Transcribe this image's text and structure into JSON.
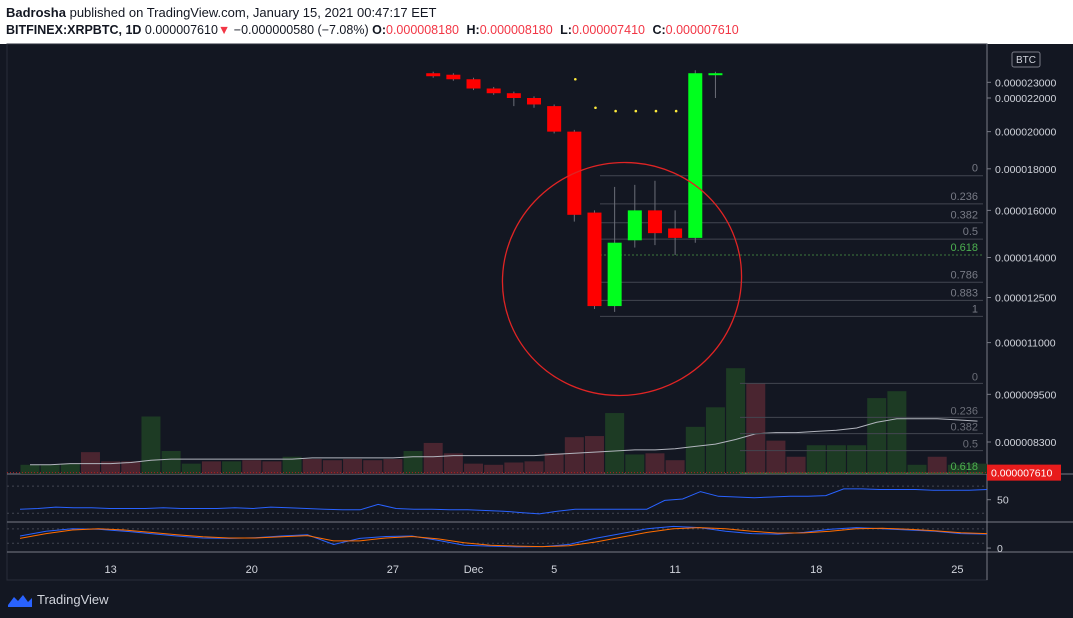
{
  "header": {
    "author": "Badrosha",
    "published_text": "published on TradingView.com, January 15, 2021 00:47:17 EET",
    "symbol": "BITFINEX:XRPBTC, 1D",
    "last": "0.000007610",
    "change": "−0.000000580 (−7.08%)",
    "o_label": "O:",
    "o_value": "0.000008180",
    "h_label": "H:",
    "h_value": "0.000008180",
    "l_label": "L:",
    "l_value": "0.000007410",
    "c_label": "C:",
    "c_value": "0.000007610"
  },
  "currency_badge": "BTC",
  "last_price_badge": "0.000007610",
  "branding": {
    "name": "TradingView",
    "icon": "tradingview-logo-icon"
  },
  "colors": {
    "background": "#131722",
    "up": "#00ff1e",
    "down": "#ff0000",
    "fib_green": "#4caf50",
    "rsi_line": "#2962ff",
    "stoch_k": "#2962ff",
    "stoch_d": "#ff6d00",
    "annotation": "#ff2020"
  },
  "chart_data": {
    "type": "candlestick",
    "price_axis": {
      "range": [
        7.5e-06,
        2.35e-05
      ],
      "ticks": [
        "0.000023000",
        "0.000022000",
        "0.000020000",
        "0.000018000",
        "0.000016000",
        "0.000014000",
        "0.000012500",
        "0.000011000",
        "0.000009500",
        "0.000008300"
      ]
    },
    "tick_values": [
      2.3e-05,
      2.2e-05,
      2e-05,
      1.8e-05,
      1.6e-05,
      1.4e-05,
      1.25e-05,
      1.1e-05,
      9.5e-06,
      8.3e-06
    ],
    "x_labels": [
      {
        "label": "13",
        "idx": 4
      },
      {
        "label": "20",
        "idx": 11
      },
      {
        "label": "27",
        "idx": 18
      },
      {
        "label": "Dec",
        "idx": 22
      },
      {
        "label": "5",
        "idx": 26
      },
      {
        "label": "11",
        "idx": 32
      },
      {
        "label": "18",
        "idx": 39
      },
      {
        "label": "25",
        "idx": 46
      }
    ],
    "candles": [
      {
        "idx": 20,
        "o": 2.36e-05,
        "h": 2.37e-05,
        "c": 2.34e-05,
        "l": 2.33e-05
      },
      {
        "idx": 21,
        "o": 2.35e-05,
        "h": 2.36e-05,
        "c": 2.32e-05,
        "l": 2.31e-05
      },
      {
        "idx": 22,
        "o": 2.32e-05,
        "h": 2.33e-05,
        "c": 2.26e-05,
        "l": 2.25e-05
      },
      {
        "idx": 23,
        "o": 2.26e-05,
        "h": 2.27e-05,
        "c": 2.23e-05,
        "l": 2.22e-05
      },
      {
        "idx": 24,
        "o": 2.23e-05,
        "h": 2.24e-05,
        "c": 2.2e-05,
        "l": 2.15e-05
      },
      {
        "idx": 25,
        "o": 2.2e-05,
        "h": 2.21e-05,
        "c": 2.16e-05,
        "l": 2.14e-05
      },
      {
        "idx": 26,
        "o": 2.15e-05,
        "h": 2.16e-05,
        "c": 2e-05,
        "l": 1.99e-05
      },
      {
        "idx": 27,
        "o": 2e-05,
        "h": 2.01e-05,
        "c": 1.58e-05,
        "l": 1.55e-05
      },
      {
        "idx": 28,
        "o": 1.59e-05,
        "h": 1.6e-05,
        "c": 1.22e-05,
        "l": 1.21e-05
      },
      {
        "idx": 29,
        "o": 1.22e-05,
        "h": 1.71e-05,
        "c": 1.46e-05,
        "l": 1.2e-05
      },
      {
        "idx": 30,
        "o": 1.47e-05,
        "h": 1.72e-05,
        "c": 1.6e-05,
        "l": 1.44e-05
      },
      {
        "idx": 31,
        "o": 1.6e-05,
        "h": 1.74e-05,
        "c": 1.5e-05,
        "l": 1.45e-05
      },
      {
        "idx": 32,
        "o": 1.52e-05,
        "h": 1.6e-05,
        "c": 1.48e-05,
        "l": 1.41e-05
      },
      {
        "idx": 33,
        "o": 1.48e-05,
        "h": 2.38e-05,
        "c": 2.36e-05,
        "l": 1.46e-05
      },
      {
        "idx": 34,
        "o": 2.36e-05,
        "h": 2.37e-05,
        "c": 2.36e-05,
        "l": 2.2e-05
      }
    ],
    "sar_dots": [
      {
        "idx": 27,
        "v": 2.32e-05
      },
      {
        "idx": 28,
        "v": 2.14e-05
      },
      {
        "idx": 29,
        "v": 2.12e-05
      },
      {
        "idx": 30,
        "v": 2.12e-05
      },
      {
        "idx": 31,
        "v": 2.12e-05
      },
      {
        "idx": 32,
        "v": 2.12e-05
      }
    ],
    "fib_upper": {
      "levels": [
        {
          "label": "0",
          "ratio": 0,
          "v": 1.765e-05
        },
        {
          "label": "0.236",
          "ratio": 0.236,
          "v": 1.63e-05
        },
        {
          "label": "0.382",
          "ratio": 0.382,
          "v": 1.545e-05
        },
        {
          "label": "0.5",
          "ratio": 0.5,
          "v": 1.475e-05
        },
        {
          "label": "0.618",
          "ratio": 0.618,
          "v": 1.41e-05
        },
        {
          "label": "0.786",
          "ratio": 0.786,
          "v": 1.305e-05
        },
        {
          "label": "1",
          "ratio": 1,
          "v": 1.185e-05
        }
      ],
      "extra": {
        "label": "0.883",
        "v": 1.24e-05
      }
    },
    "fib_lower": {
      "levels": [
        {
          "label": "0",
          "v": 9.8e-06
        },
        {
          "label": "0.236",
          "v": 8.9e-06
        },
        {
          "label": "0.382",
          "v": 8.5e-06
        },
        {
          "label": "0.5",
          "v": 8.1e-06
        },
        {
          "label": "0.618",
          "v": 7.6e-06
        }
      ]
    },
    "last_price_value": 7.61e-06,
    "volume": [
      {
        "idx": 0,
        "v": 0.8,
        "up": true
      },
      {
        "idx": 1,
        "v": 0.8,
        "up": true
      },
      {
        "idx": 2,
        "v": 0.9,
        "up": true
      },
      {
        "idx": 3,
        "v": 1.9,
        "up": false
      },
      {
        "idx": 4,
        "v": 1.1,
        "up": false
      },
      {
        "idx": 5,
        "v": 1.1,
        "up": false
      },
      {
        "idx": 6,
        "v": 5.0,
        "up": true
      },
      {
        "idx": 7,
        "v": 2.0,
        "up": true
      },
      {
        "idx": 8,
        "v": 0.9,
        "up": true
      },
      {
        "idx": 9,
        "v": 1.1,
        "up": false
      },
      {
        "idx": 10,
        "v": 1.1,
        "up": true
      },
      {
        "idx": 11,
        "v": 1.2,
        "up": false
      },
      {
        "idx": 12,
        "v": 1.1,
        "up": false
      },
      {
        "idx": 13,
        "v": 1.5,
        "up": true
      },
      {
        "idx": 14,
        "v": 1.3,
        "up": false
      },
      {
        "idx": 15,
        "v": 1.2,
        "up": false
      },
      {
        "idx": 16,
        "v": 1.3,
        "up": false
      },
      {
        "idx": 17,
        "v": 1.2,
        "up": false
      },
      {
        "idx": 18,
        "v": 1.3,
        "up": false
      },
      {
        "idx": 19,
        "v": 2.0,
        "up": true
      },
      {
        "idx": 20,
        "v": 2.7,
        "up": false
      },
      {
        "idx": 21,
        "v": 1.8,
        "up": false
      },
      {
        "idx": 22,
        "v": 0.9,
        "up": false
      },
      {
        "idx": 23,
        "v": 0.8,
        "up": false
      },
      {
        "idx": 24,
        "v": 1.0,
        "up": false
      },
      {
        "idx": 25,
        "v": 1.1,
        "up": false
      },
      {
        "idx": 26,
        "v": 1.8,
        "up": false
      },
      {
        "idx": 27,
        "v": 3.2,
        "up": false
      },
      {
        "idx": 28,
        "v": 3.3,
        "up": false
      },
      {
        "idx": 29,
        "v": 5.3,
        "up": true
      },
      {
        "idx": 30,
        "v": 1.7,
        "up": true
      },
      {
        "idx": 31,
        "v": 1.8,
        "up": false
      },
      {
        "idx": 32,
        "v": 1.2,
        "up": false
      },
      {
        "idx": 33,
        "v": 4.1,
        "up": true
      },
      {
        "idx": 34,
        "v": 5.8,
        "up": true
      },
      {
        "idx": 35,
        "v": 9.2,
        "up": true
      },
      {
        "idx": 36,
        "v": 7.9,
        "up": false
      },
      {
        "idx": 37,
        "v": 2.9,
        "up": false
      },
      {
        "idx": 38,
        "v": 1.5,
        "up": false
      },
      {
        "idx": 39,
        "v": 2.5,
        "up": true
      },
      {
        "idx": 40,
        "v": 2.5,
        "up": true
      },
      {
        "idx": 41,
        "v": 2.5,
        "up": true
      },
      {
        "idx": 42,
        "v": 6.6,
        "up": true
      },
      {
        "idx": 43,
        "v": 7.2,
        "up": true
      },
      {
        "idx": 44,
        "v": 0.8,
        "up": true
      },
      {
        "idx": 45,
        "v": 1.5,
        "up": false
      },
      {
        "idx": 46,
        "v": 0.8,
        "up": true
      },
      {
        "idx": 47,
        "v": 0.9,
        "up": true
      }
    ],
    "volume_ma": [
      0.8,
      0.8,
      0.9,
      0.9,
      0.9,
      1.0,
      1.2,
      1.3,
      1.3,
      1.3,
      1.3,
      1.3,
      1.3,
      1.3,
      1.4,
      1.4,
      1.4,
      1.4,
      1.4,
      1.5,
      1.5,
      1.6,
      1.6,
      1.6,
      1.6,
      1.6,
      1.7,
      1.8,
      1.9,
      2.0,
      2.1,
      2.1,
      2.2,
      2.4,
      2.6,
      3.0,
      3.5,
      3.6,
      3.6,
      3.7,
      3.8,
      4.0,
      4.5,
      4.8,
      4.8,
      4.8,
      4.7,
      4.6
    ],
    "rsi": {
      "ticks": [
        "50"
      ],
      "tick_values": [
        50
      ],
      "range": [
        20,
        85
      ],
      "bands": [
        70,
        30
      ],
      "values": [
        36,
        37,
        39,
        38,
        38,
        37,
        37,
        37,
        38,
        37,
        37,
        37,
        38,
        37,
        39,
        38,
        37,
        36,
        35,
        35,
        43,
        37,
        36,
        36,
        35,
        35,
        34,
        33,
        31,
        29,
        33,
        36,
        36,
        36,
        36,
        36,
        49,
        51,
        62,
        55,
        54,
        53,
        54,
        55,
        55,
        56,
        66,
        66,
        65,
        65,
        65,
        64,
        64,
        64,
        65
      ]
    },
    "stoch": {
      "ticks": [
        "0"
      ],
      "tick_values": [
        0
      ],
      "range": [
        -8,
        100
      ],
      "k": [
        50,
        70,
        80,
        78,
        70,
        60,
        50,
        42,
        40,
        43,
        50,
        55,
        15,
        40,
        48,
        50,
        32,
        12,
        8,
        5,
        6,
        15,
        40,
        60,
        80,
        90,
        85,
        70,
        60,
        58,
        65,
        78,
        85,
        80,
        75,
        70,
        60,
        58
      ],
      "d": [
        40,
        60,
        75,
        80,
        75,
        65,
        55,
        47,
        42,
        42,
        47,
        52,
        30,
        30,
        42,
        48,
        38,
        22,
        12,
        8,
        6,
        10,
        25,
        45,
        65,
        80,
        85,
        80,
        70,
        62,
        63,
        70,
        80,
        82,
        78,
        72,
        64,
        60
      ]
    }
  }
}
